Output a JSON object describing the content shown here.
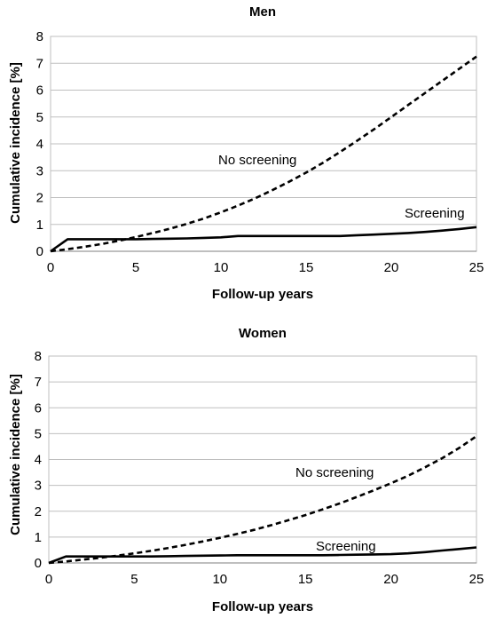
{
  "chart_data": [
    {
      "type": "line",
      "title": "Men",
      "xlabel": "Follow-up years",
      "ylabel": "Cumulative incidence [%]",
      "xlim": [
        0,
        25
      ],
      "ylim": [
        0,
        8
      ],
      "xticks": [
        0,
        5,
        10,
        15,
        20,
        25
      ],
      "yticks": [
        0,
        1,
        2,
        3,
        4,
        5,
        6,
        7,
        8
      ],
      "grid": true,
      "series": [
        {
          "name": "No screening",
          "style": "dashed",
          "color": "#000000",
          "x": [
            0,
            1,
            2,
            3,
            4,
            5,
            6,
            7,
            8,
            9,
            10,
            11,
            12,
            13,
            14,
            15,
            16,
            17,
            18,
            19,
            20,
            21,
            22,
            23,
            24,
            25
          ],
          "y": [
            0,
            0.08,
            0.17,
            0.27,
            0.39,
            0.53,
            0.68,
            0.84,
            1.02,
            1.22,
            1.45,
            1.7,
            1.97,
            2.27,
            2.59,
            2.93,
            3.3,
            3.7,
            4.12,
            4.55,
            5.0,
            5.45,
            5.9,
            6.35,
            6.8,
            7.25
          ]
        },
        {
          "name": "Screening",
          "style": "solid",
          "color": "#000000",
          "x": [
            0,
            1,
            2,
            3,
            4,
            5,
            6,
            7,
            8,
            9,
            10,
            11,
            12,
            13,
            14,
            15,
            16,
            17,
            18,
            19,
            20,
            21,
            22,
            23,
            24,
            25
          ],
          "y": [
            0,
            0.45,
            0.45,
            0.45,
            0.45,
            0.45,
            0.46,
            0.47,
            0.48,
            0.5,
            0.52,
            0.57,
            0.57,
            0.57,
            0.57,
            0.57,
            0.57,
            0.57,
            0.6,
            0.62,
            0.65,
            0.68,
            0.72,
            0.77,
            0.83,
            0.9
          ]
        }
      ]
    },
    {
      "type": "line",
      "title": "Women",
      "xlabel": "Follow-up years",
      "ylabel": "Cumulative incidence [%]",
      "xlim": [
        0,
        25
      ],
      "ylim": [
        0,
        8
      ],
      "xticks": [
        0,
        5,
        10,
        15,
        20,
        25
      ],
      "yticks": [
        0,
        1,
        2,
        3,
        4,
        5,
        6,
        7,
        8
      ],
      "grid": true,
      "series": [
        {
          "name": "No screening",
          "style": "dashed",
          "color": "#000000",
          "x": [
            0,
            1,
            2,
            3,
            4,
            5,
            6,
            7,
            8,
            9,
            10,
            11,
            12,
            13,
            14,
            15,
            16,
            17,
            18,
            19,
            20,
            21,
            22,
            23,
            24,
            25
          ],
          "y": [
            0,
            0.06,
            0.13,
            0.2,
            0.28,
            0.37,
            0.47,
            0.58,
            0.7,
            0.83,
            0.97,
            1.12,
            1.28,
            1.46,
            1.65,
            1.85,
            2.07,
            2.3,
            2.55,
            2.81,
            3.08,
            3.37,
            3.7,
            4.05,
            4.45,
            4.9
          ]
        },
        {
          "name": "Screening",
          "style": "solid",
          "color": "#000000",
          "x": [
            0,
            1,
            2,
            3,
            4,
            5,
            6,
            7,
            8,
            9,
            10,
            11,
            12,
            13,
            14,
            15,
            16,
            17,
            18,
            19,
            20,
            21,
            22,
            23,
            24,
            25
          ],
          "y": [
            0,
            0.25,
            0.25,
            0.25,
            0.25,
            0.25,
            0.25,
            0.26,
            0.27,
            0.28,
            0.29,
            0.3,
            0.3,
            0.3,
            0.3,
            0.3,
            0.3,
            0.31,
            0.32,
            0.33,
            0.34,
            0.37,
            0.42,
            0.48,
            0.54,
            0.6
          ]
        }
      ]
    }
  ]
}
